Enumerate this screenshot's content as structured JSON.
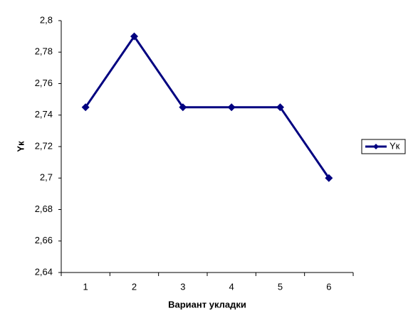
{
  "chart_data": {
    "type": "line",
    "x_label": "Вариант укладки",
    "y_label": "Yк",
    "categories": [
      "1",
      "2",
      "3",
      "4",
      "5",
      "6"
    ],
    "series": [
      {
        "name": "Yк",
        "color": "#000080",
        "values": [
          2.745,
          2.79,
          2.745,
          2.745,
          2.745,
          2.7
        ]
      }
    ],
    "ylim": [
      2.64,
      2.8
    ],
    "yticks": [
      {
        "value": 2.64,
        "label": "2,64"
      },
      {
        "value": 2.66,
        "label": "2,66"
      },
      {
        "value": 2.68,
        "label": "2,68"
      },
      {
        "value": 2.7,
        "label": "2,7"
      },
      {
        "value": 2.72,
        "label": "2,72"
      },
      {
        "value": 2.74,
        "label": "2,74"
      },
      {
        "value": 2.76,
        "label": "2,76"
      },
      {
        "value": 2.78,
        "label": "2,78"
      },
      {
        "value": 2.8,
        "label": "2,8"
      }
    ],
    "grid": false,
    "legend": "right"
  }
}
